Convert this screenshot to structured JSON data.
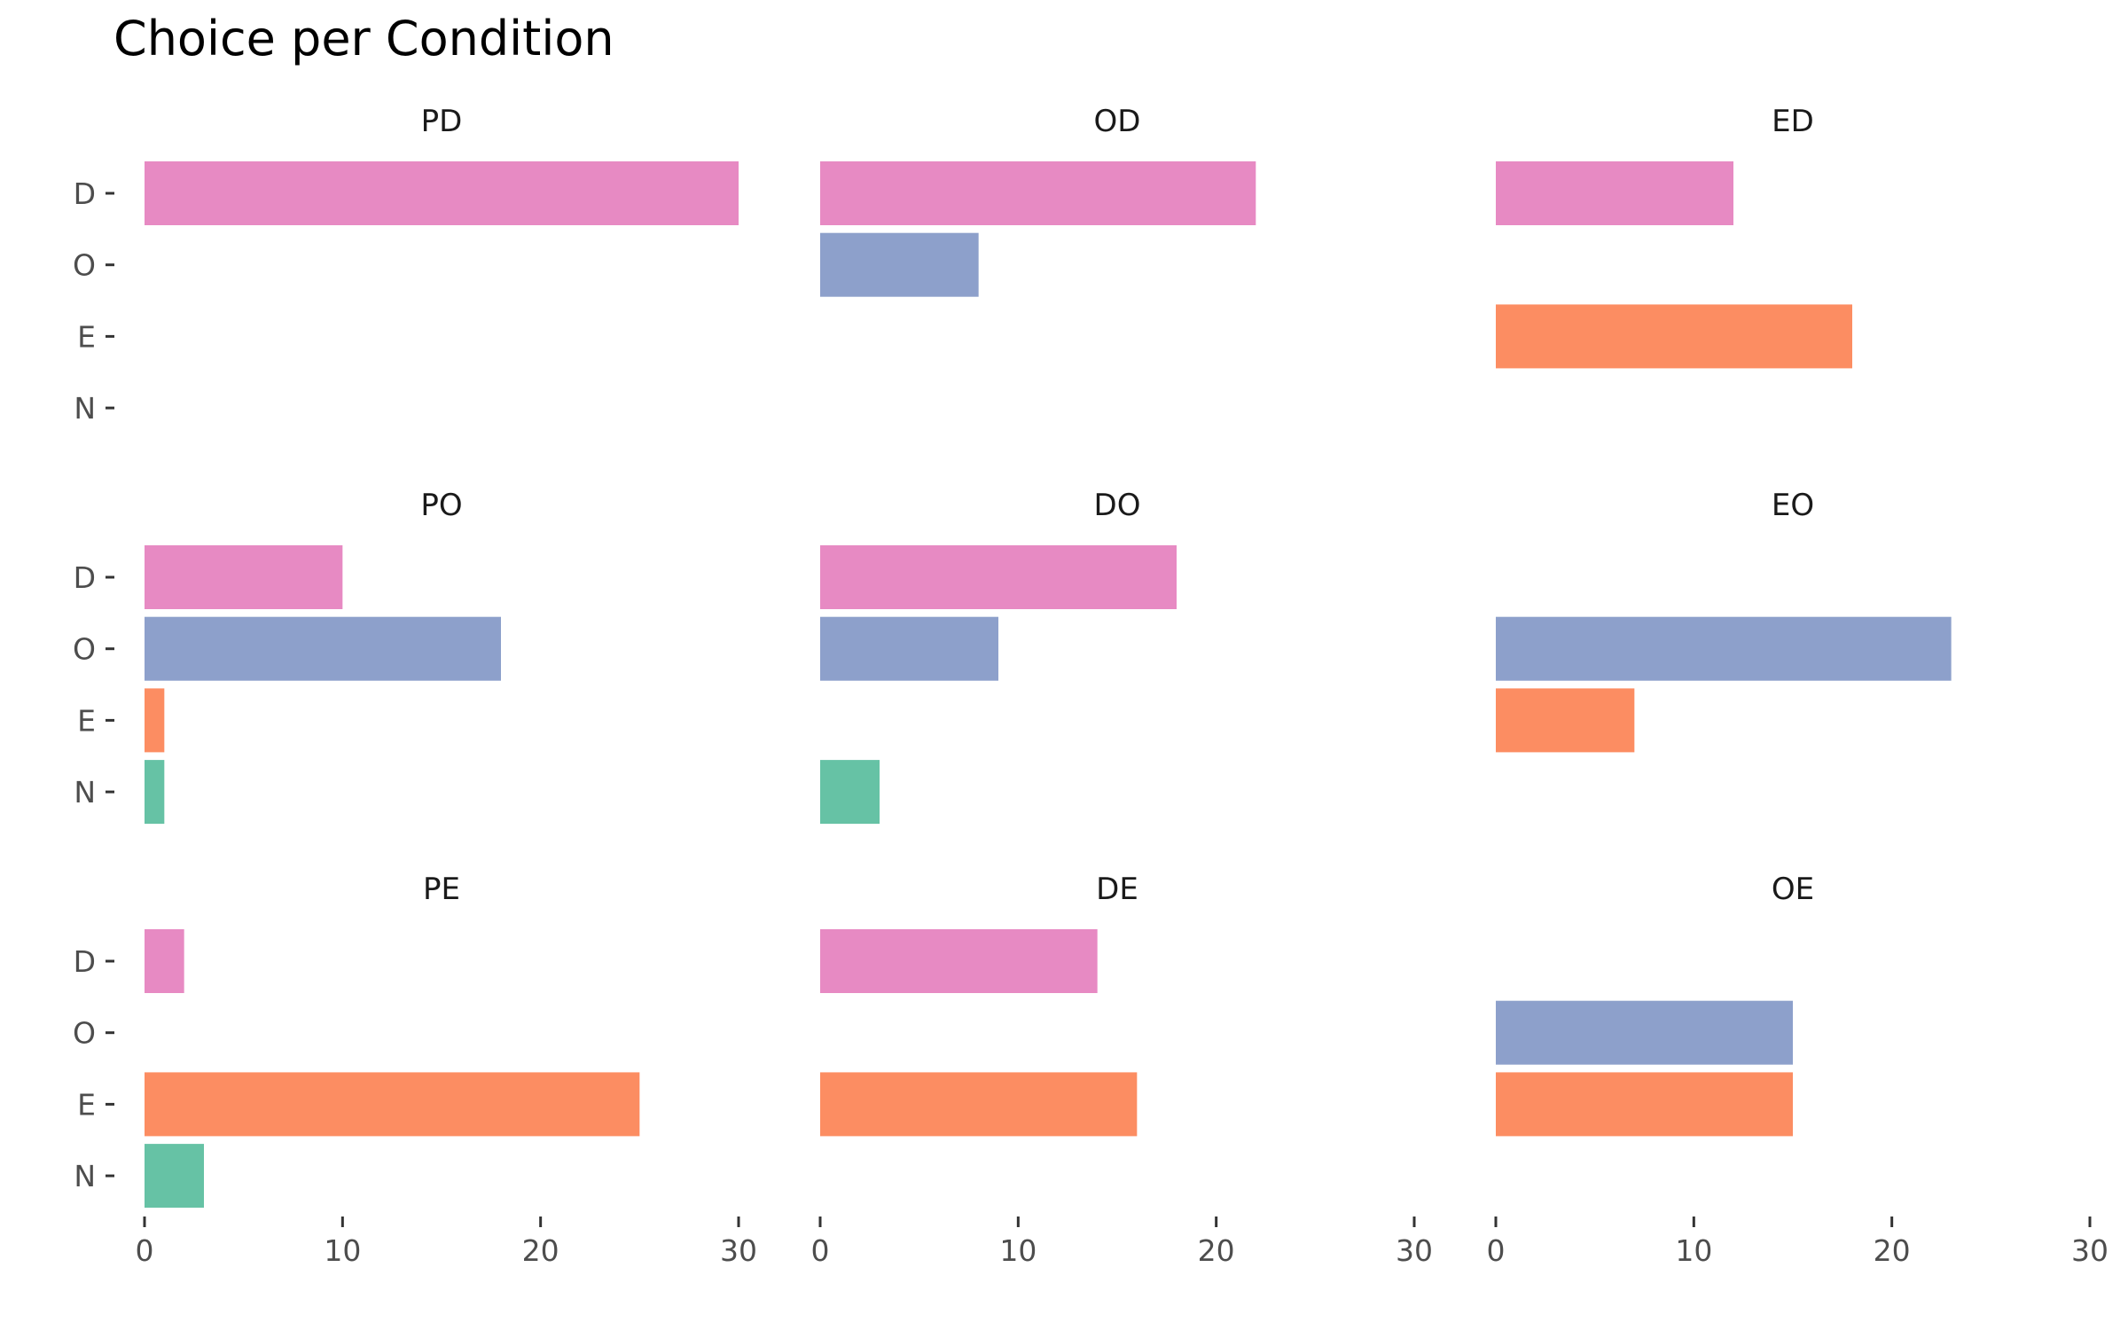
{
  "chart_data": {
    "type": "bar",
    "orientation": "horizontal",
    "title": "Choice per Condition",
    "xlabel": "",
    "ylabel": "",
    "xlim": [
      0,
      30
    ],
    "x_ticks": [
      0,
      10,
      20,
      30
    ],
    "categories": [
      "D",
      "O",
      "E",
      "N"
    ],
    "colors": {
      "D": "#e78ac3",
      "O": "#8da0cb",
      "E": "#fc8d62",
      "N": "#66c2a5"
    },
    "grid": false,
    "legend": "none",
    "panels": [
      {
        "name": "PD",
        "values": {
          "D": 30,
          "O": 0,
          "E": 0,
          "N": 0
        }
      },
      {
        "name": "OD",
        "values": {
          "D": 22,
          "O": 8,
          "E": 0,
          "N": 0
        }
      },
      {
        "name": "ED",
        "values": {
          "D": 12,
          "O": 0,
          "E": 18,
          "N": 0
        }
      },
      {
        "name": "PO",
        "values": {
          "D": 10,
          "O": 18,
          "E": 1,
          "N": 1
        }
      },
      {
        "name": "DO",
        "values": {
          "D": 18,
          "O": 9,
          "E": 0,
          "N": 3
        }
      },
      {
        "name": "EO",
        "values": {
          "D": 0,
          "O": 23,
          "E": 7,
          "N": 0
        }
      },
      {
        "name": "PE",
        "values": {
          "D": 2,
          "O": 0,
          "E": 25,
          "N": 3
        }
      },
      {
        "name": "DE",
        "values": {
          "D": 14,
          "O": 0,
          "E": 16,
          "N": 0
        }
      },
      {
        "name": "OE",
        "values": {
          "D": 0,
          "O": 15,
          "E": 15,
          "N": 0
        }
      }
    ]
  }
}
